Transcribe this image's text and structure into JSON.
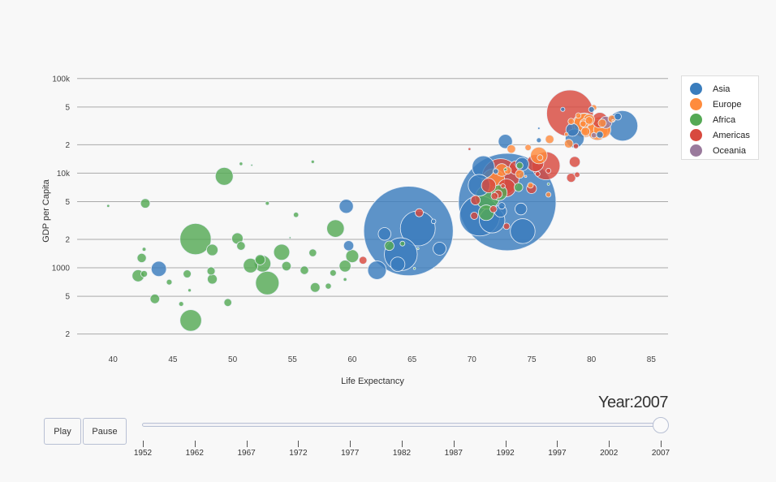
{
  "chart_data": {
    "type": "scatter",
    "subtype": "bubble",
    "xlabel": "Life Expectancy",
    "ylabel": "GDP per Capita",
    "xlim": [
      37,
      86.4
    ],
    "ylim": [
      139,
      119000
    ],
    "y_scale": "log",
    "grid": "horizontal",
    "legend_position": "right",
    "x_ticks": [
      "40",
      "45",
      "50",
      "55",
      "60",
      "65",
      "70",
      "75",
      "80",
      "85"
    ],
    "x_tick_values": [
      40,
      45,
      50,
      55,
      60,
      65,
      70,
      75,
      80,
      85
    ],
    "y_ticks": [
      "100k",
      "5",
      "2",
      "10k",
      "5",
      "2",
      "1000",
      "5",
      "2"
    ],
    "y_tick_values": [
      100000,
      50000,
      20000,
      10000,
      5000,
      2000,
      1000,
      500,
      200
    ],
    "size_variable": "population (millions)",
    "series": [
      {
        "name": "Asia",
        "color": "#3a7dbd",
        "points": [
          [
            72.96,
            4959,
            1318.7
          ],
          [
            64.7,
            2452,
            1110.4
          ],
          [
            70.65,
            3541,
            223.5
          ],
          [
            82.6,
            31656,
            127.5
          ],
          [
            65.48,
            2606,
            169.3
          ],
          [
            64.06,
            1391,
            150.4
          ],
          [
            71.69,
            3190,
            91.1
          ],
          [
            74.25,
            2442,
            85.3
          ],
          [
            70.96,
            11606,
            69.5
          ],
          [
            70.6,
            7458,
            65.1
          ],
          [
            62.07,
            944,
            47.8
          ],
          [
            78.6,
            23348,
            49.0
          ],
          [
            43.83,
            975,
            31.9
          ],
          [
            63.8,
            1091,
            28.9
          ],
          [
            59.5,
            4471,
            27.5
          ],
          [
            72.8,
            21655,
            27.6
          ],
          [
            74.2,
            12452,
            24.8
          ],
          [
            78.4,
            28718,
            23.2
          ],
          [
            67.3,
            1593,
            23.3
          ],
          [
            72.4,
            3970,
            20.4
          ],
          [
            62.7,
            2281,
            22.2
          ],
          [
            74.1,
            4185,
            19.3
          ],
          [
            59.7,
            1714,
            14.1
          ],
          [
            82.2,
            39725,
            6.98
          ],
          [
            80.7,
            25523,
            6.4
          ],
          [
            80.0,
            47143,
            4.55
          ],
          [
            77.6,
            47307,
            2.5
          ],
          [
            66.8,
            3096,
            2.87
          ],
          [
            72.5,
            4519,
            6.05
          ],
          [
            72.0,
            10461,
            3.9
          ],
          [
            75.6,
            22316,
            3.2
          ],
          [
            75.6,
            29796,
            0.7
          ]
        ]
      },
      {
        "name": "Europe",
        "color": "#ff8b3d",
        "points": [
          [
            79.4,
            32170,
            82.4
          ],
          [
            71.8,
            8458,
            71.2
          ],
          [
            80.7,
            30470,
            61.1
          ],
          [
            79.4,
            33203,
            60.8
          ],
          [
            80.5,
            28570,
            58.1
          ],
          [
            80.9,
            28821,
            40.4
          ],
          [
            75.6,
            15390,
            38.5
          ],
          [
            72.5,
            10808,
            22.3
          ],
          [
            79.8,
            36798,
            16.6
          ],
          [
            79.5,
            27538,
            10.7
          ],
          [
            78.1,
            20510,
            10.6
          ],
          [
            79.4,
            33693,
            10.4
          ],
          [
            76.5,
            22833,
            10.2
          ],
          [
            73.3,
            18009,
            9.96
          ],
          [
            80.9,
            33860,
            9.03
          ],
          [
            79.8,
            36126,
            8.2
          ],
          [
            74.0,
            9787,
            10.2
          ],
          [
            73.0,
            10681,
            7.3
          ],
          [
            81.7,
            37506,
            7.55
          ],
          [
            78.3,
            35278,
            5.47
          ],
          [
            80.2,
            49357,
            4.63
          ],
          [
            78.9,
            40676,
            4.1
          ],
          [
            76.4,
            5937,
            3.6
          ],
          [
            74.9,
            7446,
            4.55
          ],
          [
            75.7,
            14619,
            4.5
          ],
          [
            79.3,
            33207,
            5.2
          ],
          [
            74.7,
            18678,
            5.45
          ],
          [
            81.8,
            36181,
            0.3
          ],
          [
            74.5,
            9254,
            0.68
          ],
          [
            77.9,
            25768,
            2.0
          ]
        ]
      },
      {
        "name": "Africa",
        "color": "#55a955",
        "points": [
          [
            46.9,
            2014,
            135
          ],
          [
            52.9,
            691,
            76.5
          ],
          [
            71.3,
            5581,
            80.3
          ],
          [
            46.5,
            278,
            64.6
          ],
          [
            49.3,
            9270,
            44
          ],
          [
            58.6,
            2602,
            42.3
          ],
          [
            52.5,
            1107,
            38.1
          ],
          [
            54.1,
            1463,
            35.6
          ],
          [
            71.2,
            3820,
            33.8
          ],
          [
            72.3,
            6223,
            33.3
          ],
          [
            51.5,
            1056,
            29.2
          ],
          [
            60.0,
            1328,
            22.9
          ],
          [
            42.1,
            824,
            20
          ],
          [
            59.4,
            1044,
            19.2
          ],
          [
            48.3,
            1545,
            18
          ],
          [
            50.4,
            2042,
            17.7
          ],
          [
            42.7,
            4797,
            12.4
          ],
          [
            48.3,
            759,
            13.3
          ],
          [
            56.9,
            620,
            12.9
          ],
          [
            52.3,
            1217,
            14.3
          ],
          [
            54.5,
            1043,
            12
          ],
          [
            43.5,
            470,
            12.3
          ],
          [
            42.4,
            1271,
            11.7
          ],
          [
            63.1,
            1712,
            12.3
          ],
          [
            50.7,
            1704,
            10.2
          ],
          [
            73.9,
            7093,
            10.3
          ],
          [
            46.2,
            863,
            8.86
          ],
          [
            56.0,
            943,
            9.9
          ],
          [
            48.2,
            926,
            9.1
          ],
          [
            49.6,
            430,
            8.4
          ],
          [
            56.7,
            1441,
            8.1
          ],
          [
            42.6,
            863,
            6.1
          ],
          [
            58.4,
            883,
            5.7
          ],
          [
            74.0,
            12057,
            6.0
          ],
          [
            58.0,
            641,
            4.9
          ],
          [
            44.7,
            706,
            4.4
          ],
          [
            45.7,
            415,
            3.2
          ],
          [
            64.2,
            1803,
            3.3
          ],
          [
            52.9,
            4811,
            2.05
          ],
          [
            50.7,
            12570,
            1.64
          ],
          [
            42.6,
            1569,
            2.0
          ],
          [
            56.7,
            13206,
            1.45
          ],
          [
            39.6,
            4513,
            1.13
          ],
          [
            72.8,
            10957,
            1.25
          ],
          [
            76.4,
            7670,
            0.8
          ],
          [
            51.6,
            12154,
            0.55
          ],
          [
            54.8,
            2082,
            0.5
          ],
          [
            65.2,
            986,
            0.7
          ],
          [
            65.5,
            1598,
            0.2
          ],
          [
            59.4,
            753,
            1.7
          ],
          [
            46.4,
            579,
            1.47
          ],
          [
            55.3,
            3633,
            3.8
          ]
        ]
      },
      {
        "name": "Americas",
        "color": "#d8493e",
        "points": [
          [
            78.2,
            42952,
            301
          ],
          [
            72.4,
            9066,
            190
          ],
          [
            76.2,
            11978,
            108.7
          ],
          [
            72.9,
            7007,
            44.2
          ],
          [
            75.3,
            12779,
            40.3
          ],
          [
            80.7,
            36319,
            33.4
          ],
          [
            71.4,
            7409,
            28.7
          ],
          [
            73.7,
            11416,
            26.1
          ],
          [
            78.6,
            13172,
            16.3
          ],
          [
            74.99,
            6873,
            13.8
          ],
          [
            70.3,
            5186,
            12.6
          ],
          [
            78.3,
            8948,
            11.4
          ],
          [
            60.9,
            1202,
            8.5
          ],
          [
            65.6,
            3822,
            9.1
          ],
          [
            72.2,
            6025,
            9.3
          ],
          [
            70.2,
            3548,
            7.5
          ],
          [
            71.9,
            5728,
            6.9
          ],
          [
            71.8,
            4173,
            6.7
          ],
          [
            72.9,
            2749,
            5.7
          ],
          [
            78.8,
            9645,
            4.1
          ],
          [
            78.7,
            19329,
            3.9
          ],
          [
            76.4,
            10611,
            3.4
          ],
          [
            75.5,
            9809,
            3.2
          ],
          [
            72.6,
            7321,
            2.8
          ],
          [
            69.8,
            18009,
            1.06
          ]
        ]
      },
      {
        "name": "Oceania",
        "color": "#9a7a9c",
        "points": [
          [
            81.2,
            34435,
            20.4
          ],
          [
            80.2,
            25185,
            4.1
          ]
        ]
      }
    ]
  },
  "animation": {
    "year_label": "Year:2007",
    "play_label": "Play",
    "pause_label": "Pause",
    "slider_steps": [
      "1952",
      "1962",
      "1967",
      "1972",
      "1977",
      "1982",
      "1987",
      "1992",
      "1997",
      "2002",
      "2007"
    ],
    "current_step": "2007"
  }
}
